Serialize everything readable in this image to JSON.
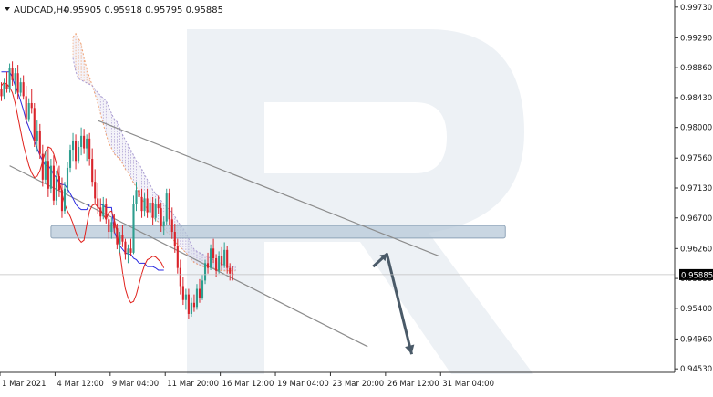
{
  "header": {
    "symbol": "AUDCAD,H4",
    "ohlc": "0.95905 0.95918 0.95795 0.95885"
  },
  "price_label": "0.95885",
  "colors": {
    "bull": "#2e9e8f",
    "bear": "#d9232a",
    "tenkan": "#e0201b",
    "kijun": "#2a2ae0",
    "span_a": "#f0a070",
    "span_b": "#a89ad0",
    "channel": "#8c8c8c",
    "zone": "#b7c8d8",
    "arrow": "#4a5a68",
    "watermark": "#edf1f5"
  },
  "icons": [
    "dropdown-triangle-icon",
    "watermark-logo"
  ],
  "chart_data": {
    "type": "candlestick",
    "symbol": "AUDCAD",
    "timeframe": "H4",
    "y_ticks": [
      "0.99730",
      "0.99290",
      "0.98860",
      "0.98430",
      "0.98000",
      "0.97560",
      "0.97130",
      "0.96700",
      "0.96260",
      "0.95830",
      "0.95400",
      "0.94960",
      "0.94530"
    ],
    "ylim": [
      0.9448,
      0.9978
    ],
    "x_ticks": [
      "1 Mar 2021",
      "4 Mar 12:00",
      "9 Mar 04:00",
      "11 Mar 20:00",
      "16 Mar 12:00",
      "19 Mar 04:00",
      "23 Mar 20:00",
      "26 Mar 12:00",
      "31 Mar 04:00"
    ],
    "x_tick_index": [
      0,
      20,
      40,
      60,
      80,
      100,
      120,
      140,
      160
    ],
    "num_bars": 245,
    "candles": [
      [
        0.9855,
        0.9865,
        0.9838,
        0.9845
      ],
      [
        0.9845,
        0.987,
        0.984,
        0.9862
      ],
      [
        0.9862,
        0.988,
        0.985,
        0.9855
      ],
      [
        0.9855,
        0.9892,
        0.985,
        0.9885
      ],
      [
        0.9885,
        0.9895,
        0.986,
        0.9868
      ],
      [
        0.9868,
        0.9885,
        0.9848,
        0.9878
      ],
      [
        0.9878,
        0.989,
        0.984,
        0.985
      ],
      [
        0.985,
        0.9872,
        0.9845,
        0.9865
      ],
      [
        0.9865,
        0.9875,
        0.984,
        0.9845
      ],
      [
        0.9845,
        0.986,
        0.9805,
        0.9812
      ],
      [
        0.9812,
        0.9842,
        0.9808,
        0.9835
      ],
      [
        0.9835,
        0.9855,
        0.982,
        0.9828
      ],
      [
        0.9828,
        0.9835,
        0.9772,
        0.978
      ],
      [
        0.978,
        0.981,
        0.9765,
        0.9795
      ],
      [
        0.9795,
        0.9805,
        0.9755,
        0.9762
      ],
      [
        0.9762,
        0.9775,
        0.9715,
        0.9725
      ],
      [
        0.9725,
        0.9765,
        0.972,
        0.9752
      ],
      [
        0.9752,
        0.977,
        0.97,
        0.9712
      ],
      [
        0.9712,
        0.9755,
        0.9705,
        0.9745
      ],
      [
        0.9745,
        0.976,
        0.9688,
        0.9695
      ],
      [
        0.9695,
        0.9738,
        0.9688,
        0.973
      ],
      [
        0.973,
        0.9745,
        0.97,
        0.971
      ],
      [
        0.971,
        0.9728,
        0.967,
        0.968
      ],
      [
        0.968,
        0.9722,
        0.9676,
        0.9712
      ],
      [
        0.9712,
        0.975,
        0.9705,
        0.9742
      ],
      [
        0.9742,
        0.9775,
        0.9735,
        0.9768
      ],
      [
        0.9768,
        0.9792,
        0.9752,
        0.978
      ],
      [
        0.978,
        0.979,
        0.974,
        0.9752
      ],
      [
        0.9752,
        0.978,
        0.9748,
        0.9772
      ],
      [
        0.9772,
        0.98,
        0.976,
        0.9788
      ],
      [
        0.9788,
        0.9798,
        0.9762,
        0.977
      ],
      [
        0.977,
        0.979,
        0.9752,
        0.9784
      ],
      [
        0.9784,
        0.9792,
        0.9745,
        0.9755
      ],
      [
        0.9755,
        0.977,
        0.9715,
        0.9722
      ],
      [
        0.9722,
        0.974,
        0.969,
        0.9698
      ],
      [
        0.9698,
        0.972,
        0.9675,
        0.9685
      ],
      [
        0.9685,
        0.9698,
        0.9665,
        0.9672
      ],
      [
        0.9672,
        0.97,
        0.9668,
        0.969
      ],
      [
        0.969,
        0.9698,
        0.9662,
        0.9668
      ],
      [
        0.9668,
        0.9672,
        0.964,
        0.965
      ],
      [
        0.965,
        0.967,
        0.964,
        0.9664
      ],
      [
        0.9664,
        0.9676,
        0.9648,
        0.9655
      ],
      [
        0.9655,
        0.9662,
        0.9625,
        0.9632
      ],
      [
        0.9632,
        0.965,
        0.962,
        0.9645
      ],
      [
        0.9645,
        0.966,
        0.9628,
        0.9636
      ],
      [
        0.9636,
        0.964,
        0.961,
        0.9618
      ],
      [
        0.9618,
        0.9632,
        0.9605,
        0.9626
      ],
      [
        0.9626,
        0.964,
        0.9615,
        0.962
      ],
      [
        0.962,
        0.9702,
        0.9618,
        0.969
      ],
      [
        0.969,
        0.9722,
        0.968,
        0.971
      ],
      [
        0.971,
        0.9725,
        0.9695,
        0.97
      ],
      [
        0.97,
        0.9712,
        0.967,
        0.968
      ],
      [
        0.968,
        0.9705,
        0.9672,
        0.9698
      ],
      [
        0.9698,
        0.9712,
        0.967,
        0.9678
      ],
      [
        0.9678,
        0.97,
        0.9668,
        0.9692
      ],
      [
        0.9692,
        0.97,
        0.966,
        0.967
      ],
      [
        0.967,
        0.9698,
        0.9665,
        0.969
      ],
      [
        0.969,
        0.9702,
        0.9675,
        0.9684
      ],
      [
        0.9684,
        0.9692,
        0.965,
        0.9658
      ],
      [
        0.9658,
        0.9672,
        0.9645,
        0.9665
      ],
      [
        0.9665,
        0.9712,
        0.966,
        0.9705
      ],
      [
        0.9705,
        0.9712,
        0.966,
        0.9668
      ],
      [
        0.9668,
        0.9685,
        0.964,
        0.965
      ],
      [
        0.965,
        0.9662,
        0.962,
        0.963
      ],
      [
        0.963,
        0.964,
        0.959,
        0.9598
      ],
      [
        0.9598,
        0.961,
        0.956,
        0.9572
      ],
      [
        0.9572,
        0.9585,
        0.9545,
        0.9552
      ],
      [
        0.9552,
        0.9568,
        0.9538,
        0.956
      ],
      [
        0.956,
        0.9568,
        0.9525,
        0.9532
      ],
      [
        0.9532,
        0.9556,
        0.9528,
        0.9548
      ],
      [
        0.9548,
        0.956,
        0.9535,
        0.9542
      ],
      [
        0.9542,
        0.9575,
        0.9538,
        0.9568
      ],
      [
        0.9568,
        0.9582,
        0.9548,
        0.9555
      ],
      [
        0.9555,
        0.9588,
        0.9552,
        0.958
      ],
      [
        0.958,
        0.961,
        0.9575,
        0.9605
      ],
      [
        0.9605,
        0.962,
        0.959,
        0.9598
      ],
      [
        0.9598,
        0.9632,
        0.9595,
        0.9626
      ],
      [
        0.9626,
        0.964,
        0.9605,
        0.9612
      ],
      [
        0.9612,
        0.9618,
        0.9585,
        0.9594
      ],
      [
        0.9594,
        0.9622,
        0.959,
        0.9615
      ],
      [
        0.9615,
        0.9628,
        0.9595,
        0.9602
      ],
      [
        0.9602,
        0.9635,
        0.9598,
        0.9624
      ],
      [
        0.9624,
        0.963,
        0.959,
        0.9598
      ],
      [
        0.9598,
        0.9605,
        0.958,
        0.959
      ],
      [
        0.959,
        0.96,
        0.958,
        0.9588
      ]
    ],
    "tenkan_sen": [
      0.986,
      0.9865,
      0.9862,
      0.9858,
      0.985,
      0.9835,
      0.9815,
      0.9795,
      0.9775,
      0.976,
      0.9745,
      0.9735,
      0.9728,
      0.973,
      0.9738,
      0.9752,
      0.9765,
      0.9772,
      0.977,
      0.9762,
      0.9748,
      0.9725,
      0.9705,
      0.969,
      0.968,
      0.9672,
      0.9662,
      0.965,
      0.964,
      0.9635,
      0.9638,
      0.966,
      0.968,
      0.9688,
      0.969,
      0.9686,
      0.9682,
      0.9675,
      0.9668,
      0.9678,
      0.968,
      0.9668,
      0.965,
      0.9622,
      0.9592,
      0.9568,
      0.9555,
      0.9548,
      0.955,
      0.956,
      0.9575,
      0.959,
      0.9602,
      0.961,
      0.9612,
      0.9615,
      0.9614,
      0.961,
      0.9606,
      0.9598
    ],
    "kijun_sen": [
      0.988,
      0.988,
      0.988,
      0.988,
      0.9872,
      0.986,
      0.985,
      0.9838,
      0.9825,
      0.981,
      0.98,
      0.979,
      0.978,
      0.977,
      0.976,
      0.9752,
      0.9745,
      0.9745,
      0.974,
      0.9732,
      0.9728,
      0.972,
      0.9718,
      0.9718,
      0.9712,
      0.9705,
      0.9698,
      0.969,
      0.9685,
      0.9682,
      0.9682,
      0.9682,
      0.969,
      0.969,
      0.969,
      0.969,
      0.969,
      0.9688,
      0.9685,
      0.9685,
      0.9685,
      0.965,
      0.964,
      0.963,
      0.9625,
      0.962,
      0.9618,
      0.9618,
      0.9612,
      0.961,
      0.9605,
      0.9605,
      0.9605,
      0.96,
      0.96,
      0.96,
      0.9598,
      0.9595,
      0.9595,
      0.9595
    ],
    "senkou_span_a": [
      0.993,
      0.9935,
      0.9928,
      0.992,
      0.99,
      0.9885,
      0.9872,
      0.986,
      0.9848,
      0.9835,
      0.982,
      0.9805,
      0.979,
      0.9778,
      0.977,
      0.9762,
      0.9758,
      0.9755,
      0.9748,
      0.974,
      0.9735,
      0.9728,
      0.972,
      0.9715,
      0.9705,
      0.9698,
      0.969,
      0.9682,
      0.9676,
      0.967,
      0.9668,
      0.9664,
      0.966,
      0.9655,
      0.965,
      0.9646,
      0.964,
      0.9636,
      0.9632,
      0.9628,
      0.9624,
      0.962,
      0.9616,
      0.961,
      0.9606,
      0.9604,
      0.9602,
      0.96,
      0.96,
      0.96,
      0.96,
      0.9598,
      0.9596,
      0.9595,
      0.9594,
      0.9594,
      0.9594,
      0.9594,
      0.9594,
      0.9594
    ],
    "senkou_span_b": [
      0.99,
      0.988,
      0.987,
      0.9868,
      0.9866,
      0.9864,
      0.9862,
      0.986,
      0.9855,
      0.985,
      0.9846,
      0.9842,
      0.9838,
      0.983,
      0.982,
      0.9812,
      0.9808,
      0.98,
      0.979,
      0.9782,
      0.9775,
      0.9768,
      0.976,
      0.9752,
      0.9748,
      0.974,
      0.9732,
      0.9725,
      0.9718,
      0.971,
      0.9705,
      0.97,
      0.9695,
      0.969,
      0.9686,
      0.9682,
      0.9678,
      0.9672,
      0.9665,
      0.966,
      0.9655,
      0.9648,
      0.964,
      0.9632,
      0.9625,
      0.9622,
      0.962,
      0.9618,
      0.9616,
      0.9614,
      0.9612,
      0.961,
      0.9608,
      0.9606,
      0.9604,
      0.9602,
      0.96,
      0.96,
      0.96,
      0.96
    ],
    "channel_upper": [
      [
        35,
        0.981
      ],
      [
        159,
        0.9615
      ]
    ],
    "channel_lower": [
      [
        3,
        0.9745
      ],
      [
        133,
        0.9485
      ]
    ],
    "support_zone": [
      0.9641,
      0.9659
    ],
    "forecast_arrow": [
      [
        135,
        0.96
      ],
      [
        140,
        0.9618
      ],
      [
        149,
        0.9474
      ]
    ],
    "last_price": 0.95885,
    "grid": false
  }
}
